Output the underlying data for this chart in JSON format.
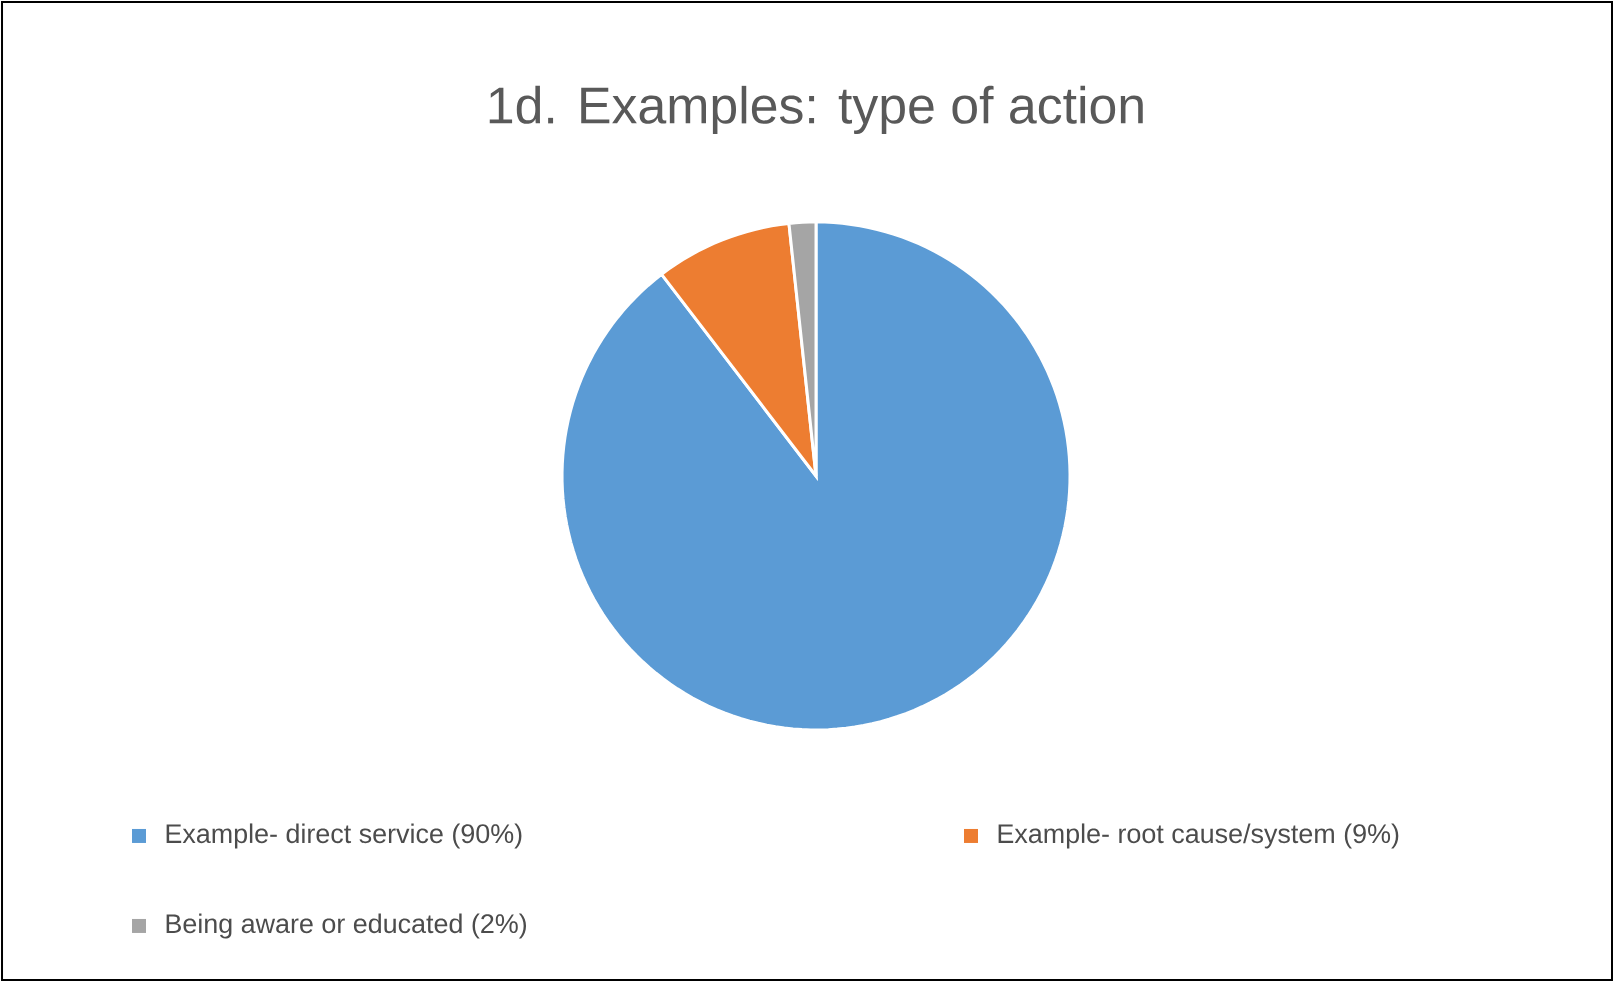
{
  "chart_data": {
    "type": "pie",
    "title": "1d. Examples: type of action",
    "categories": [
      "Example- direct service (90%)",
      "Example- root cause/system (9%)",
      "Being aware or educated (2%)"
    ],
    "values": [
      89.6,
      8.7,
      1.7
    ],
    "colors": [
      "#5b9bd5",
      "#ed7d31",
      "#a5a5a5"
    ],
    "legend": "bottom"
  }
}
